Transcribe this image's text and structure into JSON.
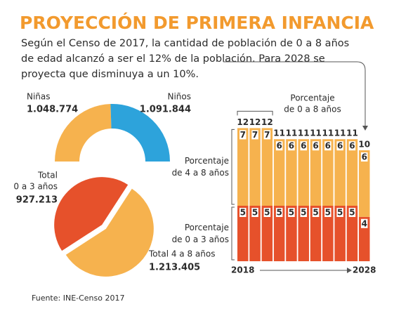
{
  "header": {
    "title": "PROYECCIÓN DE PRIMERA INFANCIA",
    "subtitle": [
      "Según el Censo de 2017, la cantidad de población de 0 a 8 años",
      "de edad alcanzó a ser el 12% de la población. Para 2028 se",
      "proyecta que disminuya a un 10%."
    ]
  },
  "chart_data": [
    {
      "type": "half-donut",
      "categories": [
        "Niñas",
        "Niños"
      ],
      "values": [
        1048774,
        1091844
      ],
      "value_labels": [
        "1.048.774",
        "1.091.844"
      ],
      "colors": [
        "#F6B24E",
        "#2DA3DB"
      ]
    },
    {
      "type": "pie",
      "categories": [
        [
          "Total",
          "0 a 3 años"
        ],
        [
          "Total 4 a 8 años"
        ]
      ],
      "values": [
        927213,
        1213405
      ],
      "value_labels": [
        "927.213",
        "1.213.405"
      ],
      "colors": [
        "#E6512B",
        "#F6B24E"
      ]
    },
    {
      "type": "stacked-bar",
      "categories": [
        "2018",
        null,
        null,
        null,
        null,
        null,
        null,
        null,
        null,
        null,
        "2028"
      ],
      "series": [
        {
          "name": [
            "Porcentaje",
            "de 0 a 3 años"
          ],
          "color": "#E6512B",
          "values": [
            5,
            5,
            5,
            5,
            5,
            5,
            5,
            5,
            5,
            5,
            4
          ]
        },
        {
          "name": [
            "Porcentaje",
            "de 4 a 8 años"
          ],
          "color": "#F6B24E",
          "values": [
            7,
            7,
            7,
            6,
            6,
            6,
            6,
            6,
            6,
            6,
            6
          ]
        }
      ],
      "totals_name": [
        "Porcentaje",
        "de 0 a 8 años"
      ],
      "totals": [
        12,
        12,
        12,
        11,
        11,
        11,
        11,
        11,
        11,
        11,
        10
      ]
    }
  ],
  "footer": {
    "source": "Fuente: INE-Censo 2017"
  }
}
